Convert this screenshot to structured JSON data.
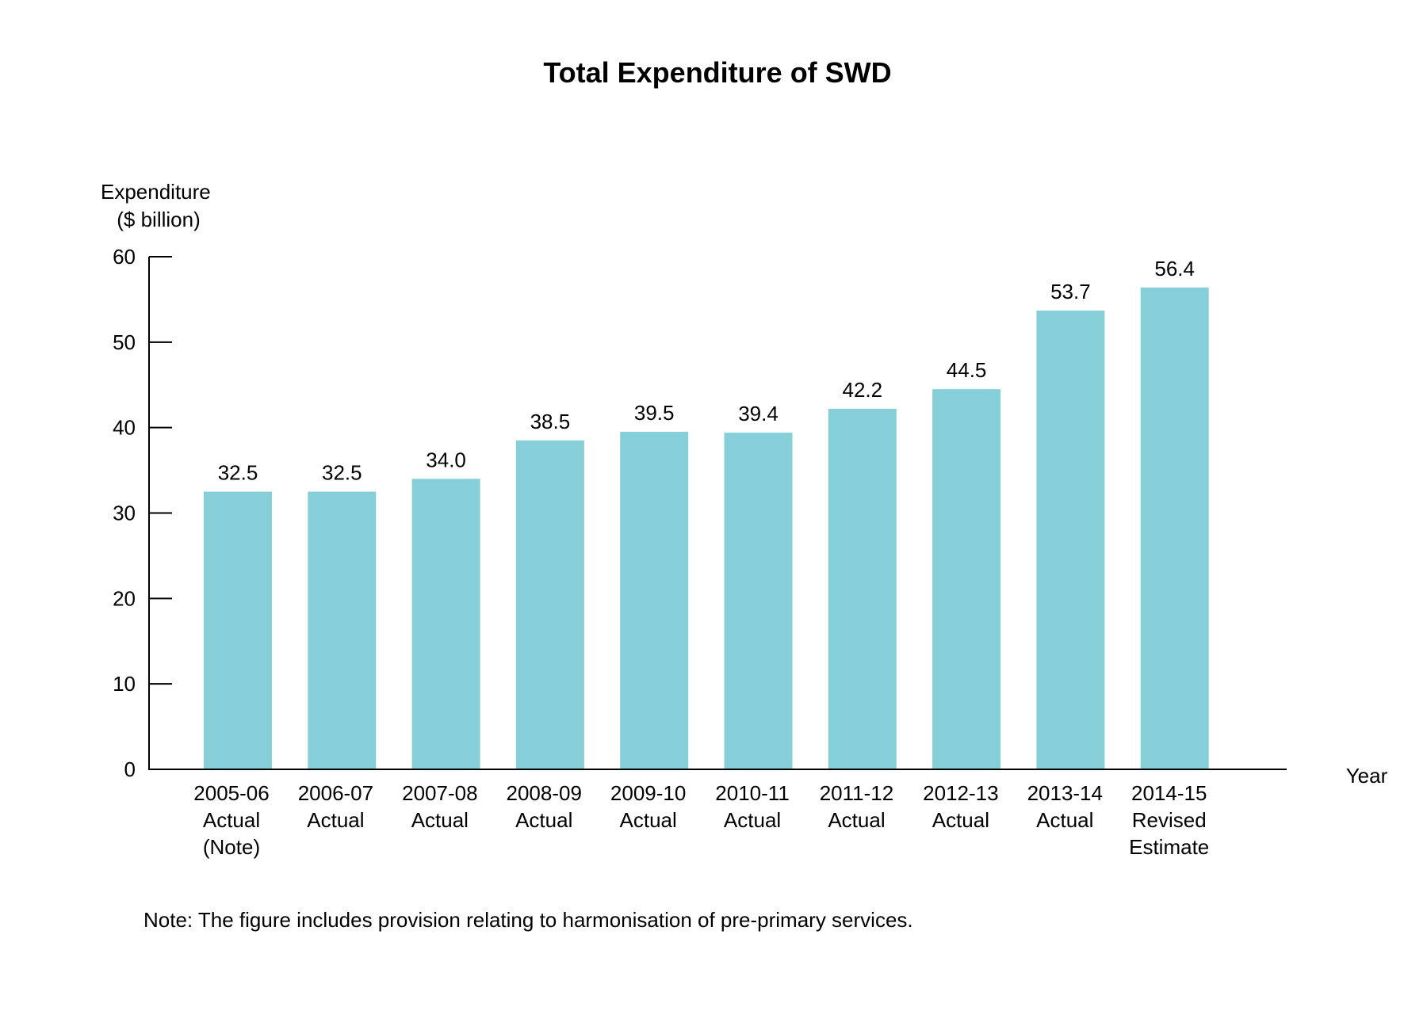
{
  "chart_data": {
    "type": "bar",
    "title": "Total Expenditure of SWD",
    "ylabel_lines": [
      "Expenditure",
      "($ billion)"
    ],
    "xlabel": "Year",
    "ylim": [
      0,
      60
    ],
    "yticks": [
      0,
      10,
      20,
      30,
      40,
      50,
      60
    ],
    "grid": false,
    "categories": [
      [
        "2005-06",
        "Actual",
        "(Note)"
      ],
      [
        "2006-07",
        "Actual"
      ],
      [
        "2007-08",
        "Actual"
      ],
      [
        "2008-09",
        "Actual"
      ],
      [
        "2009-10",
        "Actual"
      ],
      [
        "2010-11",
        "Actual"
      ],
      [
        "2011-12",
        "Actual"
      ],
      [
        "2012-13",
        "Actual"
      ],
      [
        "2013-14",
        "Actual"
      ],
      [
        "2014-15",
        "Revised",
        "Estimate"
      ]
    ],
    "values": [
      32.5,
      32.5,
      34.0,
      38.5,
      39.5,
      39.4,
      42.2,
      44.5,
      53.7,
      56.4
    ],
    "data_labels": [
      "32.5",
      "32.5",
      "34.0",
      "38.5",
      "39.5",
      "39.4",
      "42.2",
      "44.5",
      "53.7",
      "56.4"
    ],
    "bar_color": "#86CFD9",
    "note": "Note: The figure includes provision relating to harmonisation of pre-primary services."
  }
}
